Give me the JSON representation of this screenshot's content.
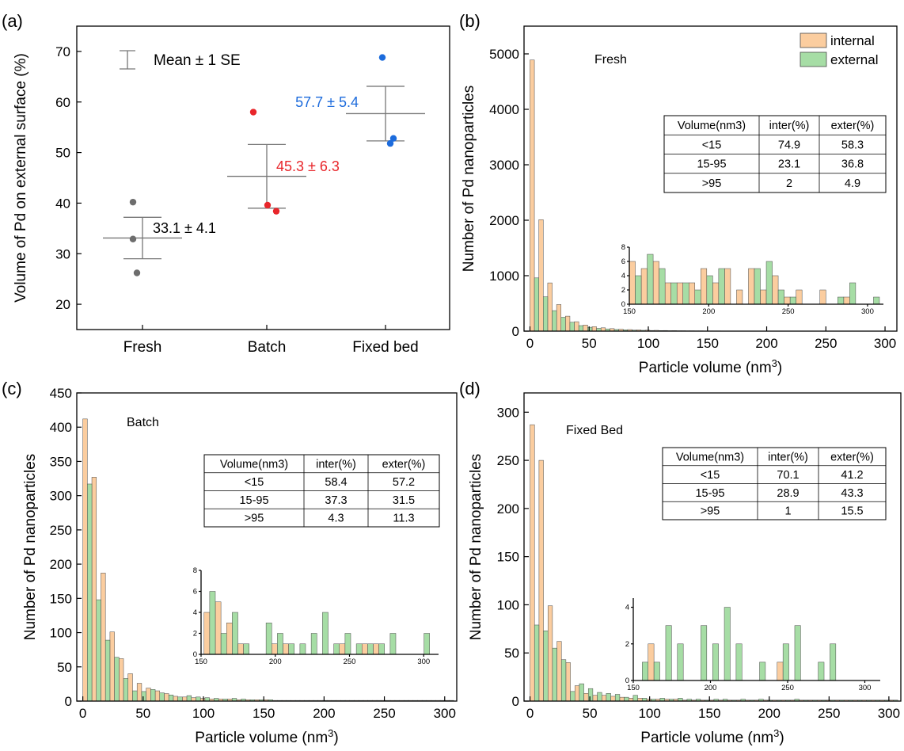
{
  "colors": {
    "internal": "#fbcd9f",
    "external": "#a6dda5",
    "bar_edge": "#4a4a4a",
    "fresh": "#6d6d6d",
    "batch": "#e8262b",
    "fixed_bed": "#1c6bdc",
    "errorbar": "#777777"
  },
  "chart_data": [
    {
      "panel": "a",
      "type": "scatter",
      "ylabel": "Volume of Pd on external surface (%)",
      "categories": [
        "Fresh",
        "Batch",
        "Fixed bed"
      ],
      "ylim": [
        15,
        75
      ],
      "yticks": [
        20,
        30,
        40,
        50,
        60,
        70
      ],
      "legend_label": "Mean ± 1 SE",
      "groups": [
        {
          "category": "Fresh",
          "points": [
            40.2,
            32.9,
            26.2
          ],
          "mean": 33.1,
          "se": 4.1,
          "label": "33.1 ± 4.1",
          "color_key": "fresh"
        },
        {
          "category": "Batch",
          "points": [
            58.0,
            39.6,
            38.4
          ],
          "mean": 45.3,
          "se": 6.3,
          "label": "45.3 ± 6.3",
          "color_key": "batch"
        },
        {
          "category": "Fixed bed",
          "points": [
            68.8,
            52.8,
            51.8
          ],
          "mean": 57.7,
          "se": 5.4,
          "label": "57.7 ± 5.4",
          "color_key": "fixed_bed"
        }
      ]
    },
    {
      "panel": "b",
      "type": "bar",
      "title": "Fresh",
      "xlabel": "Particle volume (nm³)",
      "ylabel": "Number of Pd nanoparticles",
      "xlim": [
        -5,
        310
      ],
      "ylim": [
        0,
        5500
      ],
      "xticks": [
        0,
        50,
        100,
        150,
        200,
        250,
        300
      ],
      "yticks": [
        0,
        1000,
        2000,
        3000,
        4000,
        5000
      ],
      "bin_width": 7.5,
      "legend": [
        "internal",
        "external"
      ],
      "series": [
        {
          "name": "internal",
          "values": [
            4890,
            2010,
            870,
            480,
            270,
            170,
            110,
            80,
            60,
            45,
            35,
            28,
            22,
            18,
            14,
            11,
            9,
            7,
            6,
            5,
            4,
            4,
            3,
            3,
            3,
            2,
            2,
            2,
            2,
            2,
            2,
            2,
            1,
            1,
            1,
            1,
            1,
            1,
            1,
            1,
            1
          ]
        },
        {
          "name": "external",
          "values": [
            960,
            620,
            370,
            250,
            160,
            100,
            70,
            50,
            40,
            30,
            24,
            19,
            15,
            12,
            10,
            8,
            7,
            6,
            5,
            4,
            4,
            3,
            3,
            3,
            3,
            2,
            2,
            2,
            2,
            2,
            2,
            2,
            2,
            1,
            1,
            1,
            1,
            1,
            1,
            1,
            1
          ]
        }
      ],
      "table": {
        "headers": [
          "Volume(nm3)",
          "inter(%)",
          "exter(%)"
        ],
        "rows": [
          [
            "<15",
            "74.9",
            "58.3"
          ],
          [
            "15-95",
            "23.1",
            "36.8"
          ],
          [
            ">95",
            "2",
            "4.9"
          ]
        ]
      },
      "inset": {
        "xlim": [
          150,
          310
        ],
        "ylim": [
          0,
          8
        ],
        "xticks": [
          150,
          200,
          250,
          300
        ],
        "yticks": [
          0,
          2,
          4,
          6,
          8
        ],
        "bin_start": 150,
        "bin_width": 7.5,
        "internal": [
          6,
          5,
          6,
          3,
          3,
          3,
          5,
          3,
          5,
          2,
          5,
          2,
          4,
          1,
          2,
          0,
          2,
          0,
          1,
          0,
          0
        ],
        "external": [
          4,
          7,
          5,
          3,
          3,
          2,
          4,
          5,
          0,
          0,
          5,
          6,
          2,
          1,
          0,
          0,
          0,
          1,
          3,
          0,
          1
        ]
      }
    },
    {
      "panel": "c",
      "type": "bar",
      "title": "Batch",
      "xlabel": "Particle volume (nm³)",
      "ylabel": "Number of Pd nanoparticles",
      "xlim": [
        -5,
        310
      ],
      "ylim": [
        0,
        450
      ],
      "xticks": [
        0,
        50,
        100,
        150,
        200,
        250,
        300
      ],
      "yticks": [
        0,
        50,
        100,
        150,
        200,
        250,
        300,
        350,
        400,
        450
      ],
      "bin_width": 7.5,
      "series": [
        {
          "name": "internal",
          "values": [
            412,
            327,
            187,
            101,
            62,
            40,
            26,
            19,
            15,
            11,
            7,
            6,
            5,
            4,
            3,
            3,
            3,
            2,
            2,
            2,
            2,
            1,
            1,
            1,
            1,
            1,
            1,
            1,
            1,
            1,
            1,
            1,
            1,
            1,
            1,
            1,
            1,
            1,
            1,
            1,
            1
          ]
        },
        {
          "name": "external",
          "values": [
            317,
            148,
            89,
            64,
            33,
            15,
            14,
            17,
            12,
            9,
            6,
            8,
            6,
            5,
            4,
            3,
            4,
            3,
            2,
            2,
            2,
            1,
            1,
            1,
            1,
            1,
            1,
            1,
            1,
            1,
            1,
            1,
            1,
            1,
            1,
            1,
            1,
            1,
            1,
            1,
            1
          ]
        }
      ],
      "table": {
        "headers": [
          "Volume(nm3)",
          "inter(%)",
          "exter(%)"
        ],
        "rows": [
          [
            "<15",
            "58.4",
            "57.2"
          ],
          [
            "15-95",
            "37.3",
            "31.5"
          ],
          [
            ">95",
            "4.3",
            "11.3"
          ]
        ]
      },
      "inset": {
        "xlim": [
          150,
          310
        ],
        "ylim": [
          0,
          8
        ],
        "xticks": [
          150,
          200,
          250,
          300
        ],
        "yticks": [
          0,
          2,
          4,
          6,
          8
        ],
        "bin_start": 152,
        "bin_width": 7.6,
        "internal": [
          4,
          5,
          3,
          1,
          0,
          0,
          1,
          1,
          0,
          0,
          0,
          0,
          1,
          0,
          1,
          1,
          0,
          0,
          0,
          0
        ],
        "external": [
          6,
          2,
          4,
          1,
          0,
          3,
          2,
          1,
          1,
          2,
          4,
          1,
          2,
          1,
          1,
          1,
          2,
          0,
          0,
          2
        ]
      }
    },
    {
      "panel": "d",
      "type": "bar",
      "title": "Fixed Bed",
      "xlabel": "Particle volume (nm³)",
      "ylabel": "Number of Pd nanoparticles",
      "xlim": [
        -5,
        310
      ],
      "ylim": [
        0,
        320
      ],
      "xticks": [
        0,
        50,
        100,
        150,
        200,
        250,
        300
      ],
      "yticks": [
        0,
        50,
        100,
        150,
        200,
        250,
        300
      ],
      "bin_width": 7.5,
      "series": [
        {
          "name": "internal",
          "values": [
            287,
            250,
            99,
            62,
            40,
            16,
            8,
            6,
            6,
            5,
            4,
            3,
            3,
            2,
            2,
            2,
            2,
            1,
            1,
            1,
            1,
            1,
            1,
            1,
            1,
            1,
            1,
            1,
            1,
            1,
            1,
            1,
            1,
            1,
            1,
            1,
            1,
            1,
            1,
            1,
            1
          ]
        },
        {
          "name": "external",
          "values": [
            79,
            73,
            55,
            43,
            10,
            18,
            13,
            9,
            8,
            7,
            4,
            6,
            3,
            2,
            3,
            2,
            3,
            2,
            2,
            1,
            2,
            2,
            1,
            2,
            1,
            2,
            1,
            1,
            1,
            2,
            1,
            1,
            1,
            1,
            1,
            1,
            1,
            1,
            1,
            1,
            1
          ]
        }
      ],
      "table": {
        "headers": [
          "Volume(nm3)",
          "inter(%)",
          "exter(%)"
        ],
        "rows": [
          [
            "<15",
            "70.1",
            "41.2"
          ],
          [
            "15-95",
            "28.9",
            "43.3"
          ],
          [
            ">95",
            "1",
            "15.5"
          ]
        ]
      },
      "inset": {
        "xlim": [
          150,
          310
        ],
        "ylim": [
          0,
          4.5
        ],
        "xticks": [
          150,
          200,
          250,
          300
        ],
        "yticks": [
          0,
          2,
          4
        ],
        "bin_start": 152,
        "bin_width": 7.6,
        "internal": [
          0,
          2,
          0,
          0,
          0,
          0,
          0,
          0,
          0,
          0,
          0,
          0,
          1,
          0,
          0,
          0,
          0,
          0,
          0,
          0
        ],
        "external": [
          1,
          1,
          3,
          2,
          0,
          3,
          2,
          4,
          2,
          0,
          1,
          0,
          2,
          3,
          0,
          1,
          2,
          0,
          0,
          0
        ]
      }
    }
  ]
}
